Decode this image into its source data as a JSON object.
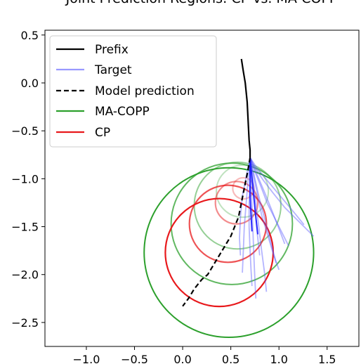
{
  "chart_data": {
    "type": "line",
    "title": "Joint Prediction Regions: CP vs. MA-COPP",
    "xlabel": "",
    "ylabel": "",
    "xlim": [
      -1.43,
      1.83
    ],
    "ylim": [
      -2.75,
      0.55
    ],
    "xticks": [
      -1.0,
      -0.5,
      0.0,
      0.5,
      1.0,
      1.5
    ],
    "xtick_labels": [
      "−1.0",
      "−0.5",
      "0.0",
      "0.5",
      "1.0",
      "1.5"
    ],
    "yticks": [
      0.5,
      0.0,
      -0.5,
      -1.0,
      -1.5,
      -2.0,
      -2.5
    ],
    "ytick_labels": [
      "0.5",
      "0.0",
      "−0.5",
      "−1.0",
      "−1.5",
      "−2.0",
      "−2.5"
    ],
    "grid": false,
    "legend_position": "top-left",
    "legend": [
      {
        "label": "Prefix",
        "color": "#000000",
        "style": "solid"
      },
      {
        "label": "Target",
        "color": "#9999ff",
        "style": "solid"
      },
      {
        "label": "Model prediction",
        "color": "#000000",
        "style": "dashed"
      },
      {
        "label": "MA-COPP",
        "color": "#2ca02c",
        "style": "solid"
      },
      {
        "label": "CP",
        "color": "#e8191c",
        "style": "solid"
      }
    ],
    "prefix": {
      "x": [
        0.61,
        0.63,
        0.65,
        0.66,
        0.67,
        0.675,
        0.68,
        0.685,
        0.69,
        0.695,
        0.7,
        0.7,
        0.7
      ],
      "y": [
        0.25,
        0.12,
        0.0,
        -0.1,
        -0.2,
        -0.3,
        -0.4,
        -0.5,
        -0.6,
        -0.65,
        -0.7,
        -0.75,
        -0.78
      ]
    },
    "model_prediction": {
      "x": [
        0.7,
        0.68,
        0.66,
        0.64,
        0.62,
        0.6,
        0.58,
        0.54,
        0.5,
        0.44,
        0.38,
        0.32,
        0.26,
        0.2,
        0.12,
        0.06,
        0.0
      ],
      "y": [
        -0.78,
        -0.9,
        -1.0,
        -1.1,
        -1.2,
        -1.3,
        -1.4,
        -1.5,
        -1.6,
        -1.7,
        -1.8,
        -1.9,
        -2.0,
        -2.05,
        -2.15,
        -2.25,
        -2.33
      ]
    },
    "targets": [
      {
        "x": [
          0.7,
          0.76,
          0.84,
          0.94,
          1.06,
          1.2,
          1.3,
          1.36
        ],
        "y": [
          -0.78,
          -0.9,
          -1.02,
          -1.15,
          -1.3,
          -1.44,
          -1.54,
          -1.6
        ]
      },
      {
        "x": [
          0.7,
          0.76,
          0.82,
          0.88,
          0.96,
          1.04,
          1.1
        ],
        "y": [
          -0.78,
          -0.95,
          -1.1,
          -1.26,
          -1.42,
          -1.58,
          -1.7
        ]
      },
      {
        "x": [
          0.7,
          0.74,
          0.78,
          0.82,
          0.88,
          0.94,
          1.0
        ],
        "y": [
          -0.78,
          -0.98,
          -1.18,
          -1.38,
          -1.58,
          -1.78,
          -1.95
        ]
      },
      {
        "x": [
          0.7,
          0.73,
          0.76,
          0.79,
          0.82,
          0.85,
          0.87
        ],
        "y": [
          -0.78,
          -1.0,
          -1.25,
          -1.5,
          -1.75,
          -1.98,
          -2.18
        ]
      },
      {
        "x": [
          0.7,
          0.71,
          0.72,
          0.73,
          0.74,
          0.75,
          0.76
        ],
        "y": [
          -0.78,
          -1.02,
          -1.28,
          -1.55,
          -1.82,
          -2.05,
          -2.25
        ]
      },
      {
        "x": [
          0.7,
          0.7,
          0.69,
          0.69,
          0.7,
          0.71,
          0.72
        ],
        "y": [
          -0.78,
          -1.0,
          -1.25,
          -1.5,
          -1.75,
          -1.95,
          -2.12
        ]
      },
      {
        "x": [
          0.7,
          0.68,
          0.66,
          0.64,
          0.63,
          0.62
        ],
        "y": [
          -0.78,
          -1.0,
          -1.25,
          -1.5,
          -1.75,
          -1.98
        ]
      },
      {
        "x": [
          0.7,
          0.66,
          0.62,
          0.6,
          0.59,
          0.6
        ],
        "y": [
          -0.78,
          -0.98,
          -1.18,
          -1.4,
          -1.62,
          -1.8
        ]
      },
      {
        "x": [
          0.7,
          0.78,
          0.88,
          0.98,
          1.08,
          1.18,
          1.26
        ],
        "y": [
          -0.78,
          -0.9,
          -1.02,
          -1.14,
          -1.26,
          -1.38,
          -1.48
        ]
      },
      {
        "x": [
          0.7,
          0.77,
          0.85,
          0.93,
          1.0,
          1.06
        ],
        "y": [
          -0.78,
          -0.95,
          -1.14,
          -1.34,
          -1.52,
          -1.68
        ]
      },
      {
        "x": [
          0.7,
          0.75,
          0.8,
          0.86,
          0.92,
          0.97
        ],
        "y": [
          -0.78,
          -1.0,
          -1.22,
          -1.45,
          -1.68,
          -1.88
        ]
      },
      {
        "x": [
          0.7,
          0.72,
          0.74,
          0.76,
          0.78,
          0.8
        ],
        "y": [
          -0.78,
          -0.98,
          -1.2,
          -1.42,
          -1.62,
          -1.8
        ]
      }
    ],
    "targets_bold": [
      {
        "x": [
          0.7,
          0.72,
          0.74,
          0.76,
          0.78
        ],
        "y": [
          -0.78,
          -1.0,
          -1.2,
          -1.4,
          -1.58
        ]
      },
      {
        "x": [
          0.7,
          0.7,
          0.7,
          0.71,
          0.72
        ],
        "y": [
          -0.78,
          -0.98,
          -1.18,
          -1.38,
          -1.55
        ]
      }
    ],
    "ma_copp_circles": [
      {
        "cx": 0.48,
        "cy": -1.77,
        "r": 0.88,
        "opacity": 1.0
      },
      {
        "cx": 0.51,
        "cy": -1.47,
        "r": 0.63,
        "opacity": 0.75
      },
      {
        "cx": 0.57,
        "cy": -1.28,
        "r": 0.45,
        "opacity": 0.5
      },
      {
        "cx": 0.62,
        "cy": -1.13,
        "r": 0.27,
        "opacity": 0.3
      }
    ],
    "cp_circles": [
      {
        "cx": 0.38,
        "cy": -1.77,
        "r": 0.56,
        "opacity": 1.0
      },
      {
        "cx": 0.47,
        "cy": -1.47,
        "r": 0.4,
        "opacity": 0.75
      },
      {
        "cx": 0.56,
        "cy": -1.25,
        "r": 0.22,
        "opacity": 0.5
      },
      {
        "cx": 0.63,
        "cy": -1.1,
        "r": 0.11,
        "opacity": 0.3
      }
    ]
  }
}
